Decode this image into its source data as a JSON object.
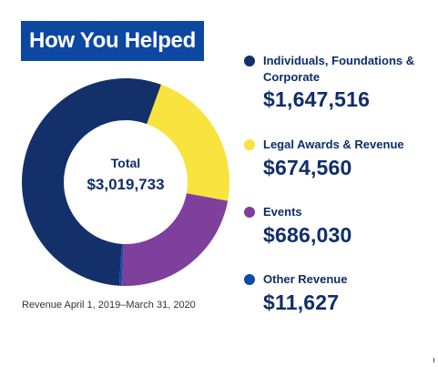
{
  "header": {
    "title": "How You Helped"
  },
  "center": {
    "label": "Total",
    "value": "$3,019,733"
  },
  "footnote": "Revenue April 1, 2019–March 31, 2020",
  "legend": [
    {
      "label": "Individuals, Foundations & Corporate",
      "value": "$1,647,516",
      "color": "#13306a"
    },
    {
      "label": "Legal Awards & Revenue",
      "value": "$674,560",
      "color": "#f8e33f"
    },
    {
      "label": "Events",
      "value": "$686,030",
      "color": "#7f3f9d"
    },
    {
      "label": "Other Revenue",
      "value": "$11,627",
      "color": "#0b4aa6"
    }
  ],
  "chart_data": {
    "type": "pie",
    "categories": [
      "Individuals, Foundations & Corporate",
      "Legal Awards & Revenue",
      "Events",
      "Other Revenue"
    ],
    "values": [
      1647516,
      674560,
      686030,
      11627
    ],
    "colors": [
      "#13306a",
      "#f8e33f",
      "#7f3f9d",
      "#0b4aa6"
    ],
    "total": 3019733,
    "title": "How You Helped"
  }
}
